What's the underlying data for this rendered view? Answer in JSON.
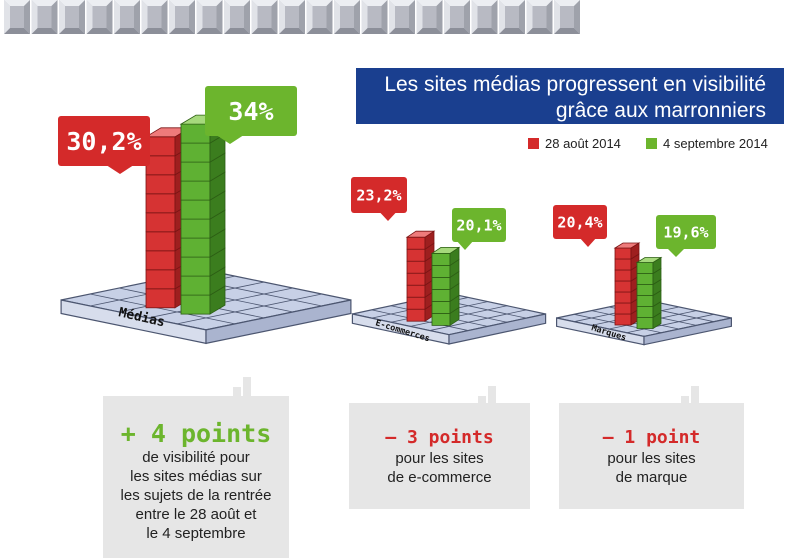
{
  "header": {
    "title_line1": "Les sites médias progressent en visibilité",
    "title_line2": "grâce aux marronniers"
  },
  "legend": [
    {
      "label": "28 août 2014",
      "color": "#d42a2a"
    },
    {
      "label": "4 septembre 2014",
      "color": "#6cb52d"
    }
  ],
  "colors": {
    "red": "#d42a2a",
    "green": "#6cb52d",
    "navy": "#1a3f8f",
    "panel": "#e6e6e6"
  },
  "chart_data": {
    "type": "bar",
    "title": "Les sites médias progressent en visibilité grâce aux marronniers",
    "unit": "%",
    "categories": [
      "Médias",
      "E-commerces",
      "Marques"
    ],
    "series": [
      {
        "name": "28 août 2014",
        "values": [
          30.2,
          23.2,
          20.4
        ],
        "labels": [
          "30,2%",
          "23,2%",
          "20,4%"
        ]
      },
      {
        "name": "4 septembre 2014",
        "values": [
          34,
          20.1,
          19.6
        ],
        "labels": [
          "34%",
          "20,1%",
          "19,6%"
        ]
      }
    ]
  },
  "summaries": [
    {
      "headline": "+ 4 points",
      "lines": [
        "de visibilité pour",
        "les sites médias sur",
        "les sujets de la rentrée",
        "entre le 28 août et",
        "le 4 septembre"
      ],
      "color": "#6cb52d"
    },
    {
      "headline": "– 3 points",
      "lines": [
        "pour les sites",
        "de e-commerce"
      ],
      "color": "#d42a2a"
    },
    {
      "headline": "– 1 point",
      "lines": [
        "pour les sites",
        "de marque"
      ],
      "color": "#d42a2a"
    }
  ]
}
